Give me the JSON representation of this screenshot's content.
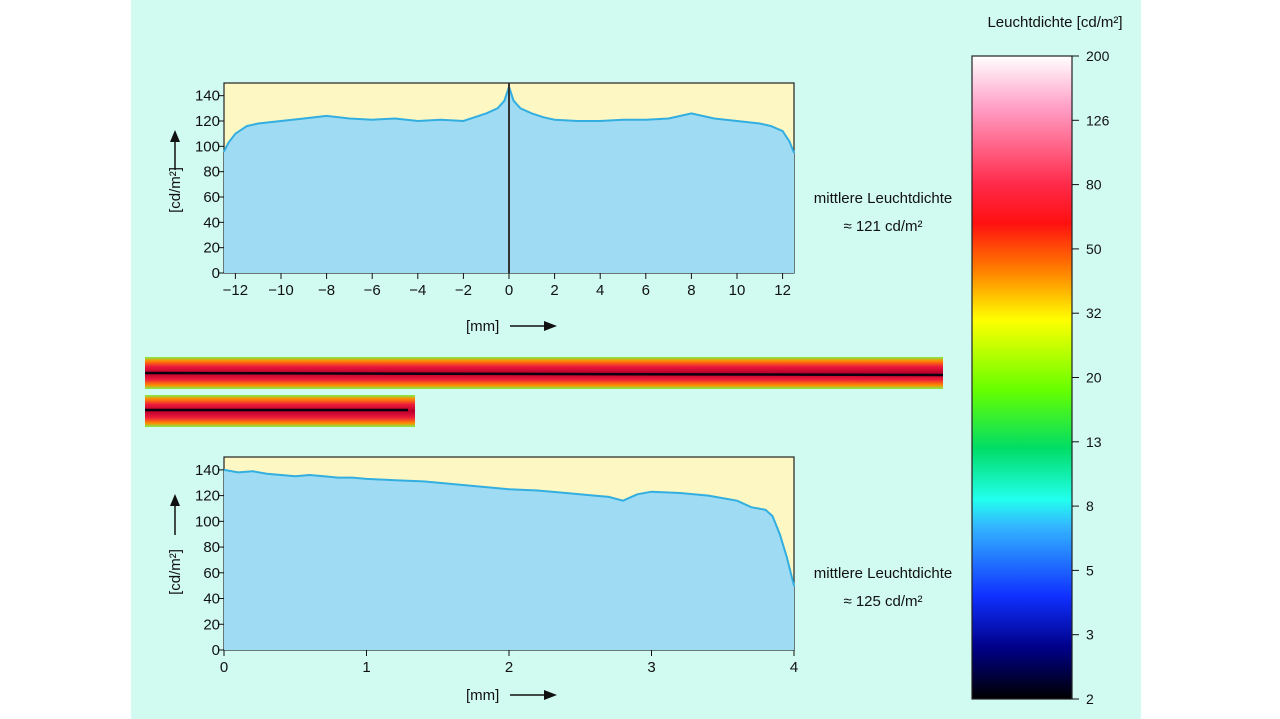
{
  "colorbar": {
    "title": "Leuchtdichte [cd/m²]",
    "ticks": [
      "200",
      "126",
      "80",
      "50",
      "32",
      "20",
      "13",
      "8",
      "5",
      "3",
      "2"
    ]
  },
  "top": {
    "ylabel": "[cd/m²]",
    "xlabel": "[mm]",
    "annotation_line1": "mittlere Leuchtdichte",
    "annotation_line2": "≈ 121 cd/m²"
  },
  "bottom": {
    "ylabel": "[cd/m²]",
    "xlabel": "[mm]",
    "annotation_line1": "mittlere Leuchtdichte",
    "annotation_line2": "≈ 125 cd/m²"
  },
  "chart_data": [
    {
      "type": "area",
      "xlabel": "[mm]",
      "ylabel": "[cd/m²]",
      "xlim": [
        -12.5,
        12.5
      ],
      "ylim": [
        0,
        150
      ],
      "xticks": [
        -12,
        -10,
        -8,
        -6,
        -4,
        -2,
        0,
        2,
        4,
        6,
        8,
        10,
        12
      ],
      "xtick_labels": [
        "−12",
        "−10",
        "−8",
        "−6",
        "−4",
        "−2",
        "0",
        "2",
        "4",
        "6",
        "8",
        "10",
        "12"
      ],
      "yticks": [
        0,
        20,
        40,
        60,
        80,
        100,
        120,
        140
      ],
      "ytick_labels": [
        "0",
        "20",
        "40",
        "60",
        "80",
        "100",
        "120",
        "140"
      ],
      "marker_x": 0,
      "series": [
        {
          "x": [
            -12.5,
            -12.3,
            -12.0,
            -11.5,
            -11.0,
            -10.0,
            -9.0,
            -8.0,
            -7.0,
            -6.0,
            -5.0,
            -4.0,
            -3.0,
            -2.0,
            -1.5,
            -1.0,
            -0.5,
            -0.2,
            0.0,
            0.2,
            0.5,
            1.0,
            1.5,
            2.0,
            3.0,
            4.0,
            5.0,
            6.0,
            7.0,
            8.0,
            9.0,
            10.0,
            11.0,
            11.5,
            12.0,
            12.3,
            12.5
          ],
          "y": [
            96,
            103,
            110,
            116,
            118,
            120,
            122,
            124,
            122,
            121,
            122,
            120,
            121,
            120,
            123,
            126,
            130,
            136,
            147,
            136,
            130,
            126,
            123,
            121,
            120,
            120,
            121,
            121,
            122,
            126,
            122,
            120,
            118,
            116,
            112,
            104,
            95
          ]
        }
      ]
    },
    {
      "type": "area",
      "xlabel": "[mm]",
      "ylabel": "[cd/m²]",
      "xlim": [
        0,
        4
      ],
      "ylim": [
        0,
        150
      ],
      "xticks": [
        0,
        1,
        2,
        3,
        4
      ],
      "xtick_labels": [
        "0",
        "1",
        "2",
        "3",
        "4"
      ],
      "yticks": [
        0,
        20,
        40,
        60,
        80,
        100,
        120,
        140
      ],
      "ytick_labels": [
        "0",
        "20",
        "40",
        "60",
        "80",
        "100",
        "120",
        "140"
      ],
      "series": [
        {
          "x": [
            0,
            0.1,
            0.2,
            0.3,
            0.4,
            0.5,
            0.6,
            0.7,
            0.8,
            0.9,
            1.0,
            1.2,
            1.4,
            1.6,
            1.8,
            2.0,
            2.2,
            2.4,
            2.6,
            2.7,
            2.8,
            2.9,
            3.0,
            3.2,
            3.4,
            3.6,
            3.7,
            3.8,
            3.85,
            3.9,
            3.95,
            4.0
          ],
          "y": [
            140,
            138,
            139,
            137,
            136,
            135,
            136,
            135,
            134,
            134,
            133,
            132,
            131,
            129,
            127,
            125,
            124,
            122,
            120,
            119,
            116,
            121,
            123,
            122,
            120,
            116,
            111,
            109,
            104,
            90,
            72,
            50
          ]
        }
      ]
    }
  ]
}
